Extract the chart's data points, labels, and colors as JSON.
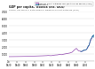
{
  "title": "GDP per capita,  Bolivia (Int. GK$)",
  "subtitle": "Source: Our World in Data based on Maddison Project Database (2020)",
  "bg_color": "#ffffff",
  "plot_bg": "#ffffff",
  "grid_color": "#dddddd",
  "line_color_main": "#9b59b6",
  "line_color_wb": "#2471a3",
  "legend_entries": [
    "Maddison Project Database 2020 (Bolt and van Zanden (2020))",
    "World Bank"
  ],
  "legend_colors": [
    "#9b59b6",
    "#2471a3"
  ],
  "xmin": 1820,
  "xmax": 2022,
  "ymin": 0,
  "ymax": 7000,
  "ytick_vals": [
    0,
    1000,
    2000,
    3000,
    4000,
    5000,
    6000,
    7000
  ],
  "ytick_labels": [
    "0",
    "1,000",
    "2,000",
    "3,000",
    "4,000",
    "5,000",
    "6,000",
    "7,000"
  ],
  "xticks": [
    1820,
    1840,
    1860,
    1880,
    1900,
    1920,
    1940,
    1960,
    1980,
    2000
  ],
  "gdp_years": [
    1820,
    1830,
    1840,
    1850,
    1860,
    1870,
    1880,
    1890,
    1900,
    1910,
    1913,
    1920,
    1925,
    1930,
    1935,
    1940,
    1945,
    1950,
    1955,
    1960,
    1965,
    1970,
    1975,
    1980,
    1985,
    1990,
    1992,
    1995,
    1998,
    2000,
    2003,
    2005,
    2008,
    2010,
    2012,
    2014,
    2016,
    2018
  ],
  "gdp_values": [
    657,
    663,
    672,
    682,
    695,
    710,
    728,
    748,
    770,
    800,
    820,
    790,
    840,
    880,
    900,
    960,
    930,
    1000,
    1060,
    1110,
    1170,
    1280,
    1580,
    1820,
    1480,
    1390,
    1360,
    1440,
    1530,
    1590,
    1620,
    1750,
    2050,
    2280,
    2620,
    2960,
    3180,
    3450
  ],
  "gdp_years_wb": [
    1990,
    1991,
    1992,
    1993,
    1994,
    1995,
    1996,
    1997,
    1998,
    1999,
    2000,
    2001,
    2002,
    2003,
    2004,
    2005,
    2006,
    2007,
    2008,
    2009,
    2010,
    2011,
    2012,
    2013,
    2014,
    2015,
    2016,
    2017,
    2018,
    2019,
    2020,
    2021
  ],
  "gdp_values_wb": [
    1390,
    1380,
    1360,
    1390,
    1440,
    1440,
    1490,
    1560,
    1600,
    1530,
    1590,
    1560,
    1580,
    1620,
    1720,
    1750,
    1890,
    2020,
    2170,
    2150,
    2280,
    2490,
    2700,
    2930,
    3120,
    3180,
    3250,
    3400,
    3530,
    3620,
    3350,
    3700
  ]
}
